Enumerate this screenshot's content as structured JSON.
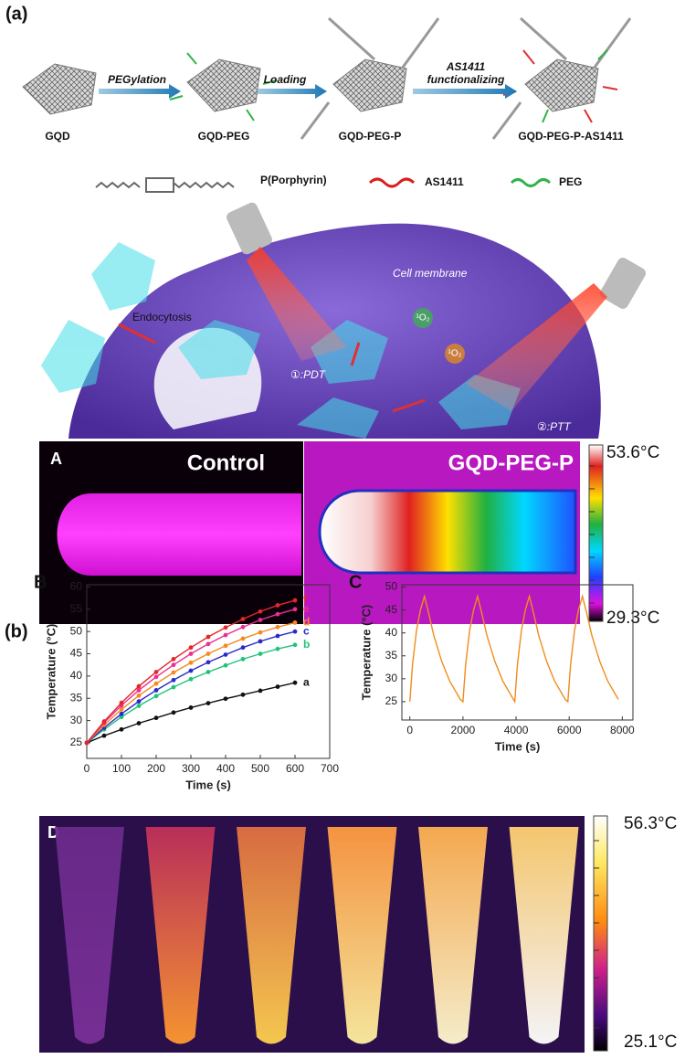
{
  "figure": {
    "panel_a_label": "(a)",
    "schematic": {
      "stages": [
        "GQD",
        "GQD-PEG",
        "GQD-PEG-P",
        "GQD-PEG-P-AS1411"
      ],
      "steps": [
        "PEGylation",
        "Loading",
        "AS1411",
        "functionalizing"
      ],
      "legend": [
        "P(Porphyrin)",
        "AS1411",
        "PEG"
      ]
    },
    "cell": {
      "membrane": "Cell membrane",
      "uptake": "Endocytosis",
      "oxygen": [
        "¹O₂",
        "¹O₂"
      ],
      "pdt": "①:PDT",
      "ptt": "②:PTT"
    },
    "thermal_A": {
      "panel": "A",
      "left": "Control",
      "right": "GQD-PEG-P",
      "max": "53.6°C",
      "min": "29.3°C"
    },
    "panel_b_label": "(b)",
    "thermal_D": {
      "panel": "D",
      "max": "56.3°C",
      "min": "25.1°C"
    }
  },
  "chart_data": [
    {
      "type": "line",
      "panel_label": "B",
      "x_label": "Time (s)",
      "y_label": "Temperature (°C)",
      "x": [
        0,
        50,
        100,
        150,
        200,
        250,
        300,
        350,
        400,
        450,
        500,
        550,
        600
      ],
      "xlim": [
        0,
        700
      ],
      "xticks": [
        0,
        100,
        200,
        300,
        400,
        500,
        600,
        700
      ],
      "ylim": [
        21.5,
        60.5
      ],
      "yticks": [
        25,
        30,
        35,
        40,
        45,
        50,
        55,
        60
      ],
      "markers": true,
      "series": [
        {
          "name": "a",
          "color": "#111111",
          "values": [
            25,
            26.6,
            28,
            29.4,
            30.6,
            31.8,
            32.9,
            33.9,
            34.9,
            35.8,
            36.7,
            37.6,
            38.5
          ]
        },
        {
          "name": "b",
          "color": "#22c27a",
          "values": [
            25,
            28,
            30.8,
            33.3,
            35.5,
            37.5,
            39.3,
            40.9,
            42.4,
            43.8,
            45,
            46.1,
            47
          ]
        },
        {
          "name": "c",
          "color": "#2a2ac8",
          "values": [
            25,
            28.4,
            31.5,
            34.3,
            36.8,
            39.1,
            41.2,
            43.1,
            44.8,
            46.4,
            47.8,
            49,
            50
          ]
        },
        {
          "name": "d",
          "color": "#f5881f",
          "values": [
            25,
            29,
            32.5,
            35.6,
            38.3,
            40.8,
            43,
            45,
            46.8,
            48.4,
            49.8,
            51,
            52
          ]
        },
        {
          "name": "e",
          "color": "#ec2f8e",
          "values": [
            25,
            29.5,
            33.4,
            36.8,
            39.8,
            42.5,
            45,
            47.2,
            49.2,
            51,
            52.6,
            53.9,
            55
          ]
        },
        {
          "name": "f",
          "color": "#e5262b",
          "values": [
            25,
            29.8,
            34,
            37.7,
            40.9,
            43.8,
            46.4,
            48.8,
            50.9,
            52.8,
            54.5,
            55.9,
            57
          ]
        }
      ]
    },
    {
      "type": "line",
      "panel_label": "C",
      "x_label": "Time (s)",
      "y_label": "Temperature (°C)",
      "x": [
        0,
        100,
        250,
        400,
        550,
        700,
        900,
        1200,
        1500,
        1900,
        2000,
        2100,
        2250,
        2400,
        2550,
        2700,
        2900,
        3200,
        3500,
        3900,
        3950,
        4050,
        4200,
        4350,
        4500,
        4650,
        4850,
        5150,
        5450,
        5850,
        5950,
        6050,
        6200,
        6350,
        6500,
        6650,
        6850,
        7150,
        7450,
        7850
      ],
      "xlim": [
        -300,
        8400
      ],
      "xticks": [
        0,
        2000,
        4000,
        6000,
        8000
      ],
      "ylim": [
        21,
        50.5
      ],
      "yticks": [
        25,
        30,
        35,
        40,
        45,
        50
      ],
      "markers": false,
      "series": [
        {
          "name": null,
          "color": "#f08c1c",
          "values": [
            25,
            33,
            40.5,
            45,
            48,
            44.5,
            39.5,
            33.8,
            29.5,
            25.5,
            25,
            33,
            40.5,
            45,
            48,
            44.5,
            39.5,
            33.8,
            29.5,
            25.5,
            25,
            33,
            40.5,
            45,
            48,
            44.5,
            39.5,
            33.8,
            29.5,
            25.5,
            25,
            33,
            40.5,
            45,
            48,
            44.5,
            39.5,
            33.8,
            29.5,
            25.5
          ]
        }
      ]
    }
  ]
}
